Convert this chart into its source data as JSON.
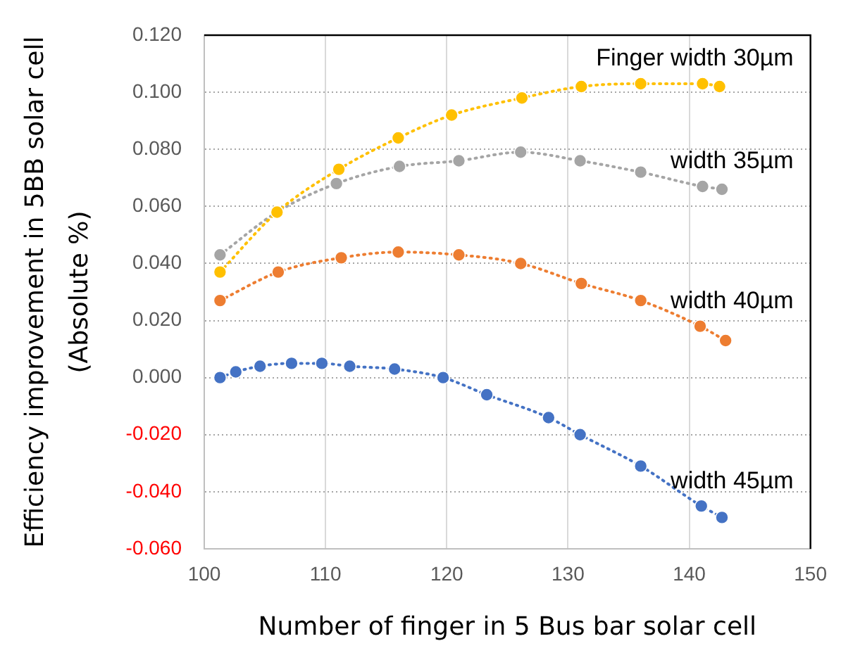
{
  "chart_data": {
    "type": "line",
    "xlabel": "Number of finger in 5 Bus bar solar cell",
    "ylabel": "Efficiency improvement in 5BB solar cell\n(Absolute %)",
    "series": [
      {
        "name": "Finger width 30µm",
        "color": "#ffc000",
        "x": [
          101.3,
          106.0,
          111.1,
          116.0,
          120.4,
          126.2,
          131.1,
          136.0,
          141.1,
          142.5
        ],
        "values": [
          0.037,
          0.058,
          0.073,
          0.084,
          0.092,
          0.098,
          0.102,
          0.103,
          0.103,
          0.102
        ]
      },
      {
        "name": "width 35µm",
        "color": "#a5a5a5",
        "x": [
          101.3,
          106.0,
          110.9,
          116.1,
          121.0,
          126.1,
          131.0,
          136.0,
          141.1,
          142.7
        ],
        "values": [
          0.043,
          0.058,
          0.068,
          0.074,
          0.076,
          0.079,
          0.076,
          0.072,
          0.067,
          0.066
        ]
      },
      {
        "name": "width 40µm",
        "color": "#ed7d31",
        "x": [
          101.3,
          106.1,
          111.3,
          116.0,
          121.0,
          126.1,
          131.1,
          136.0,
          140.9,
          143.0
        ],
        "values": [
          0.027,
          0.037,
          0.042,
          0.044,
          0.043,
          0.04,
          0.033,
          0.027,
          0.018,
          0.013
        ]
      },
      {
        "name": "width 45µm",
        "color": "#4472c4",
        "x": [
          101.3,
          102.6,
          104.6,
          107.2,
          109.7,
          112.0,
          115.7,
          119.7,
          123.3,
          128.4,
          131.0,
          136.0,
          141.0,
          142.7
        ],
        "values": [
          0.0,
          0.002,
          0.004,
          0.005,
          0.005,
          0.004,
          0.003,
          0.0,
          -0.006,
          -0.014,
          -0.02,
          -0.031,
          -0.045,
          -0.049
        ]
      }
    ],
    "xlim": [
      100,
      150
    ],
    "xticks": [
      100,
      110,
      120,
      130,
      140,
      150
    ],
    "ylim": [
      -0.06,
      0.12
    ],
    "yticks": [
      {
        "value": -0.06,
        "label": "-0.060"
      },
      {
        "value": -0.04,
        "label": "-0.040"
      },
      {
        "value": -0.02,
        "label": "-0.020"
      },
      {
        "value": 0,
        "label": "0.000"
      },
      {
        "value": 0.02,
        "label": "0.020"
      },
      {
        "value": 0.04,
        "label": "0.040"
      },
      {
        "value": 0.06,
        "label": "0.060"
      },
      {
        "value": 0.08,
        "label": "0.080"
      },
      {
        "value": 0.1,
        "label": "0.100"
      },
      {
        "value": 0.12,
        "label": "0.120"
      }
    ],
    "grid": true,
    "marker": "circle",
    "line_style": "dotted"
  }
}
